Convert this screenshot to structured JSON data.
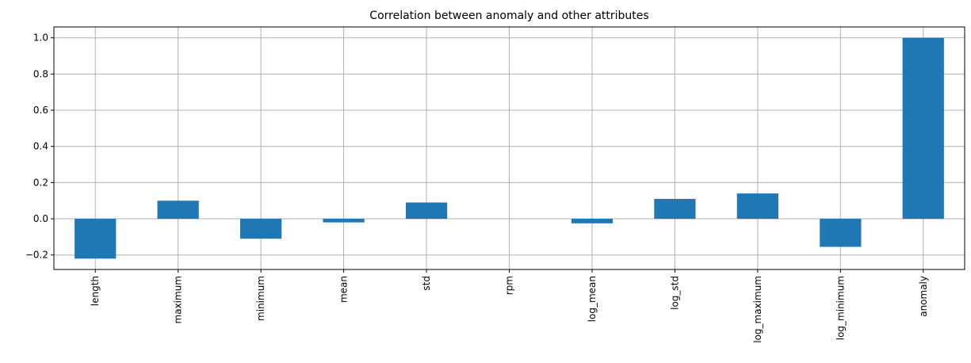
{
  "chart_data": {
    "type": "bar",
    "title": "Correlation between anomaly and other attributes",
    "xlabel": "",
    "ylabel": "",
    "categories": [
      "length",
      "maximum",
      "minimum",
      "mean",
      "std",
      "rpm",
      "log_mean",
      "log_std",
      "log_maximum",
      "log_minimum",
      "anomaly"
    ],
    "values": [
      -0.22,
      0.1,
      -0.11,
      -0.02,
      0.09,
      0.0,
      -0.025,
      0.11,
      0.14,
      -0.155,
      1.0
    ],
    "ylim": [
      -0.28,
      1.06
    ],
    "yticks": [
      -0.2,
      0.0,
      0.2,
      0.4,
      0.6,
      0.8,
      1.0
    ],
    "ytick_labels": [
      "−0.2",
      "0.0",
      "0.2",
      "0.4",
      "0.6",
      "0.8",
      "1.0"
    ],
    "grid": true,
    "bar_color": "#1f77b4"
  }
}
